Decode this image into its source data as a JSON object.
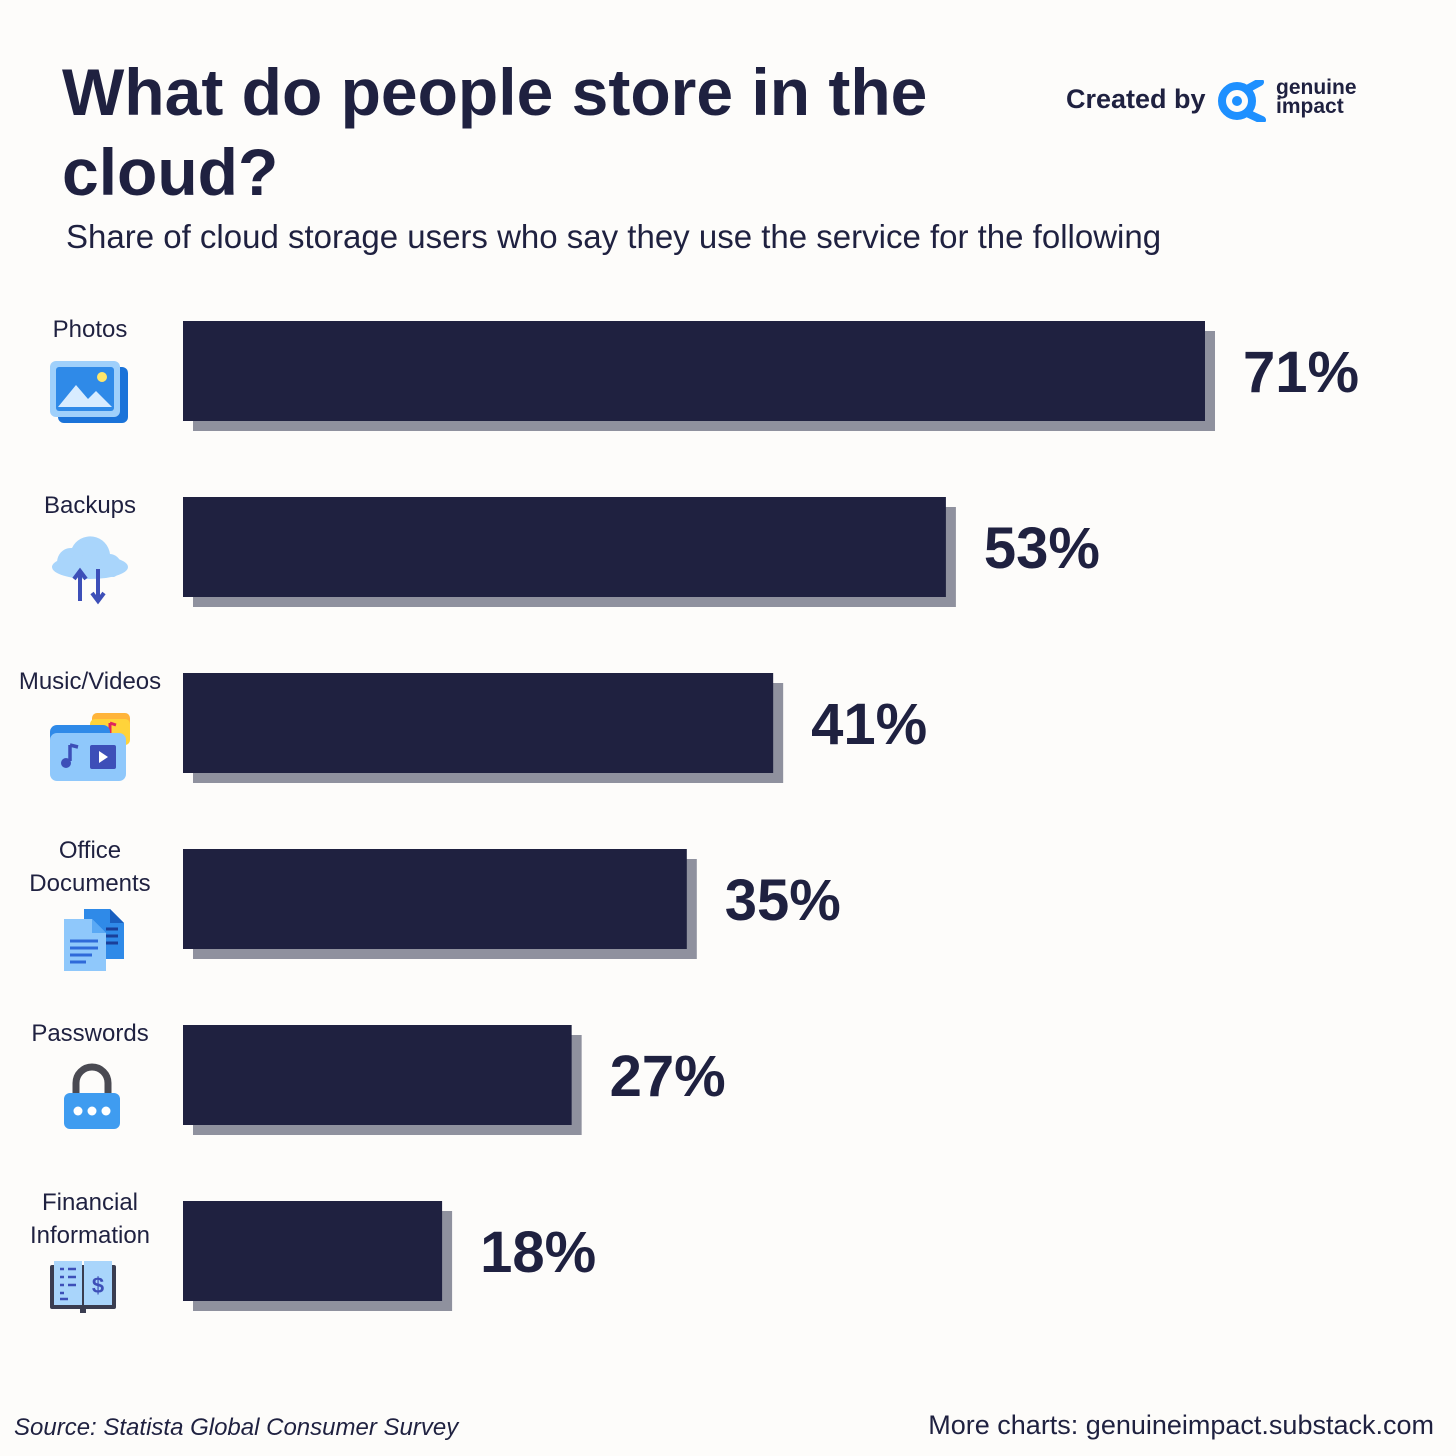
{
  "header": {
    "title": "What do people store in the cloud?",
    "subtitle": "Share of cloud storage users who say they use the service for the following",
    "created_by": "Created by",
    "brand_line1": "genuine",
    "brand_line2": "impact"
  },
  "chart_data": {
    "type": "bar",
    "orientation": "horizontal",
    "title": "What do people store in the cloud?",
    "subtitle": "Share of cloud storage users who say they use the service for the following",
    "categories": [
      "Photos",
      "Backups",
      "Music/Videos",
      "Office Documents",
      "Passwords",
      "Financial Information"
    ],
    "category_lines": [
      [
        "Photos"
      ],
      [
        "Backups"
      ],
      [
        "Music/Videos"
      ],
      [
        "Office",
        "Documents"
      ],
      [
        "Passwords"
      ],
      [
        "Financial",
        "Information"
      ]
    ],
    "icons": [
      "photos-icon",
      "cloud-backup-icon",
      "music-video-folder-icon",
      "documents-icon",
      "padlock-icon",
      "ledger-icon"
    ],
    "values": [
      71,
      53,
      41,
      35,
      27,
      18
    ],
    "value_labels": [
      "71%",
      "53%",
      "41%",
      "35%",
      "27%",
      "18%"
    ],
    "unit": "%",
    "xlim": [
      0,
      71
    ],
    "grid": false,
    "legend": "none",
    "colors": {
      "bar": "#1f2140",
      "shadow": "#8f919e",
      "icon_blue": "#3f9cf0"
    }
  },
  "footer": {
    "source": "Source: Statista Global Consumer Survey",
    "more": "More charts: genuineimpact.substack.com"
  }
}
